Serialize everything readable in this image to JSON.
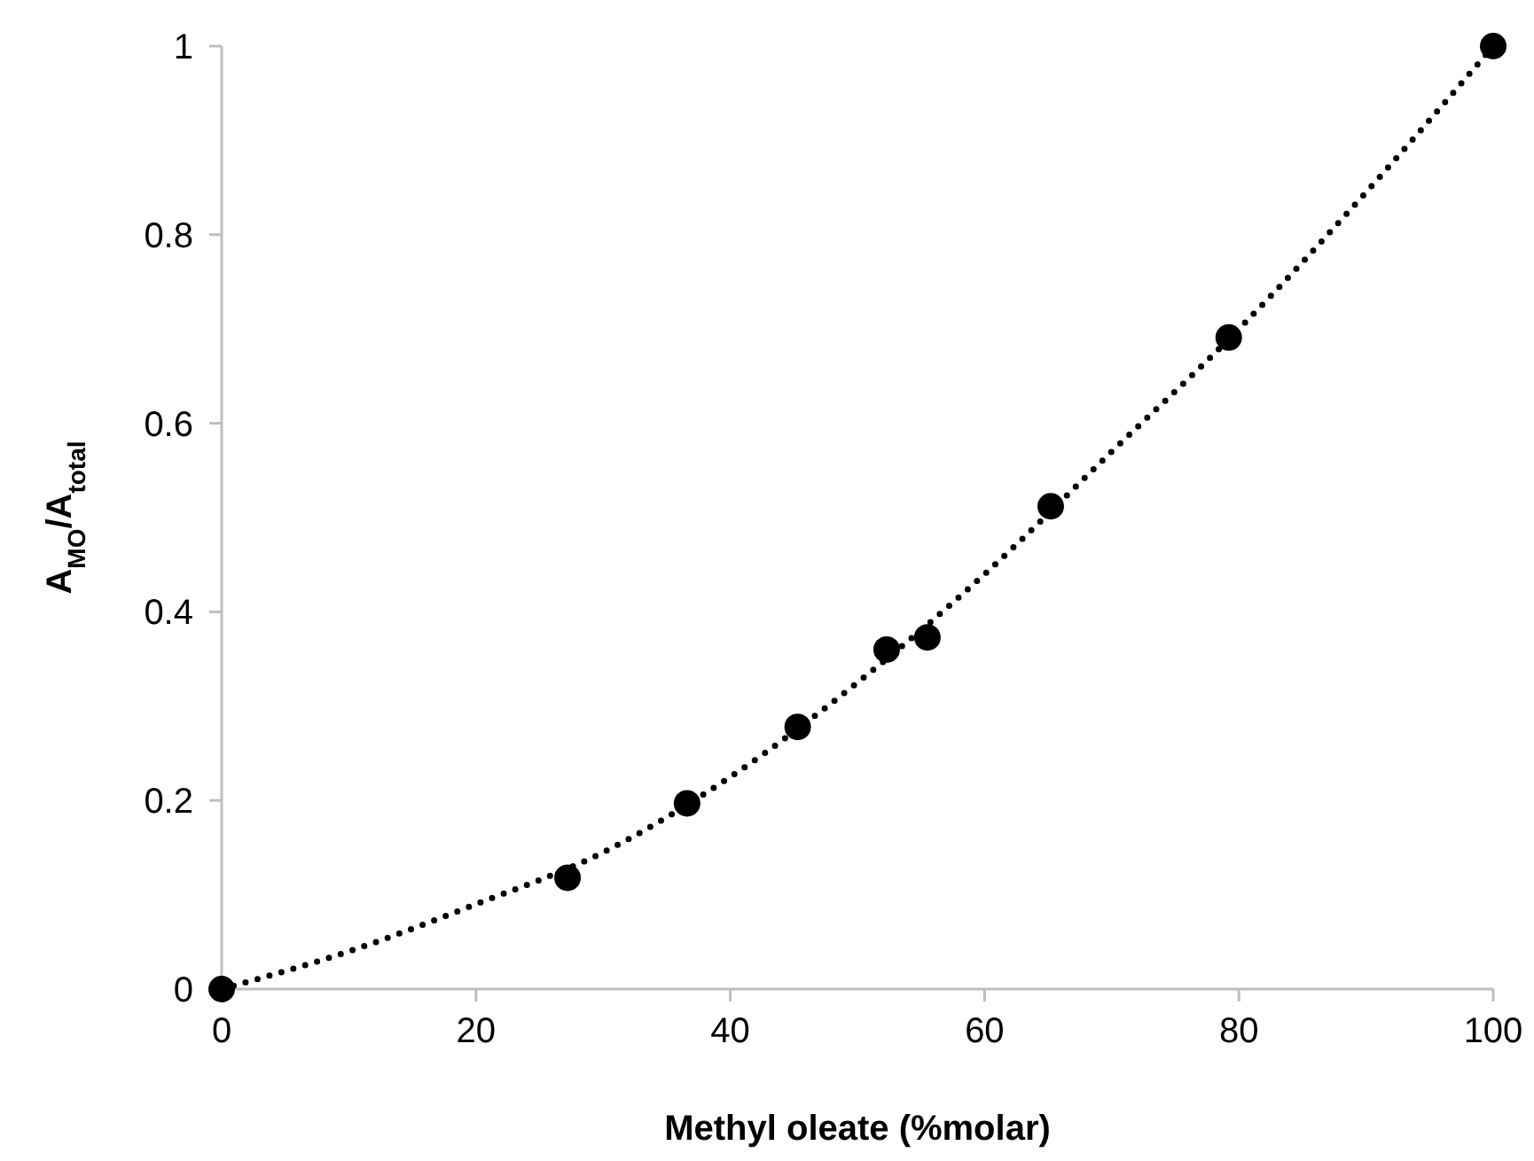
{
  "chart_data": {
    "type": "scatter",
    "xlabel": "Methyl oleate (%molar)",
    "ylabel": "A$_{MO}$/A$_{total}$",
    "xlim": [
      0,
      100
    ],
    "xticks": [
      0,
      20,
      40,
      60,
      80,
      100
    ],
    "ylim": [
      0,
      1
    ],
    "yticks": [
      0,
      0.2,
      0.4,
      0.6,
      0.8,
      1
    ],
    "grid": false,
    "series": [
      {
        "type": "line",
        "color": "#000000",
        "marker": "none",
        "line_style": "dotted",
        "x": [
          0,
          10,
          20,
          30,
          40,
          50,
          60,
          70,
          80,
          90,
          100
        ],
        "values": [
          0,
          0.04,
          0.09,
          0.145,
          0.225,
          0.325,
          0.44,
          0.57,
          0.7,
          0.845,
          1
        ]
      },
      {
        "color": "#000000",
        "marker": "circle",
        "x": [
          0,
          27.2,
          36.6,
          45.3,
          52.3,
          55.5,
          65.2,
          79.2,
          100
        ],
        "values": [
          0,
          0.118,
          0.197,
          0.278,
          0.36,
          0.373,
          0.512,
          0.691,
          1
        ]
      }
    ]
  }
}
